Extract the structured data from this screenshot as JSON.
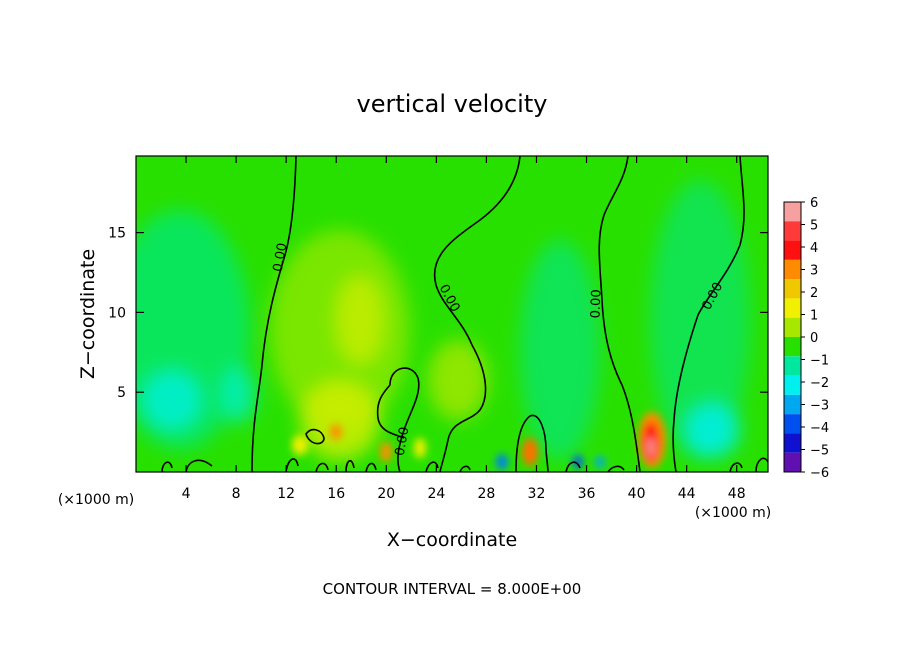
{
  "chart_data": {
    "type": "heatmap",
    "title": "vertical velocity",
    "xlabel": "X−coordinate",
    "ylabel": "Z−coordinate",
    "x_unit_left": "(×1000 m)",
    "x_unit_right": "(×1000 m)",
    "xlim": [
      0,
      50.5
    ],
    "ylim": [
      0,
      19.8
    ],
    "x_ticks": [
      4,
      8,
      12,
      16,
      20,
      24,
      28,
      32,
      36,
      40,
      44,
      48
    ],
    "y_ticks": [
      5,
      10,
      15
    ],
    "colorbar": {
      "levels": [
        6,
        5,
        4,
        3,
        2,
        1,
        0,
        -1,
        -2,
        -3,
        -4,
        -5,
        -6
      ],
      "labels": [
        "6",
        "5",
        "4",
        "3",
        "2",
        "1",
        "0",
        "−1",
        "−2",
        "−3",
        "−4",
        "−5",
        "−6"
      ],
      "colors": [
        "#f7a0a0",
        "#ff3a3a",
        "#ff1010",
        "#ff8c00",
        "#f0c800",
        "#f0f000",
        "#a8e800",
        "#28e000",
        "#00e8a0",
        "#00f0f0",
        "#00a8f0",
        "#0050f0",
        "#1010d0",
        "#6010b0"
      ]
    },
    "contour_label": "0.00",
    "footer": "CONTOUR INTERVAL = 8.000E+00"
  }
}
